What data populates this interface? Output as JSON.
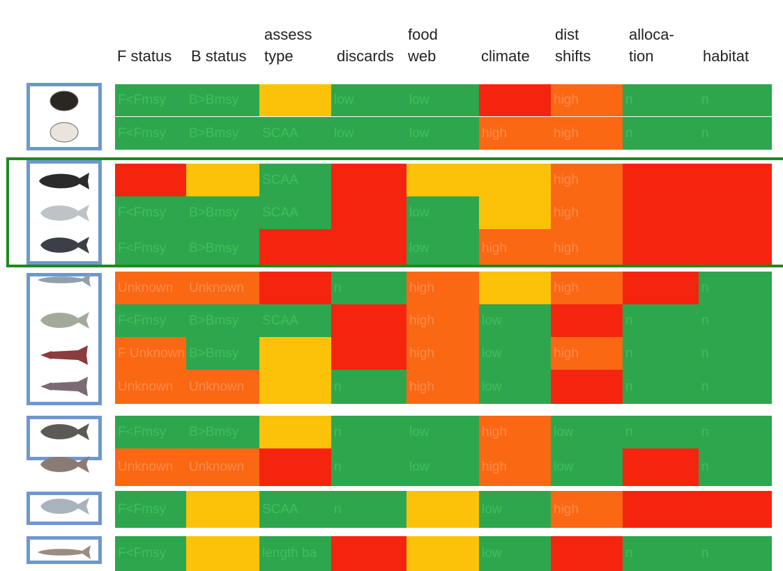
{
  "chart_data": {
    "type": "table",
    "columns": [
      "F status",
      "B status",
      "assess type",
      "discards",
      "food web",
      "climate",
      "dist shifts",
      "allocation",
      "habitat"
    ],
    "column_headers": [
      [
        "",
        "F status"
      ],
      [
        "",
        "B status"
      ],
      [
        "assess",
        "type"
      ],
      [
        "",
        "discards"
      ],
      [
        "food",
        "web"
      ],
      [
        "",
        "climate"
      ],
      [
        "dist",
        "shifts"
      ],
      [
        "alloca-",
        "tion"
      ],
      [
        "",
        "habitat"
      ]
    ],
    "colors": {
      "green": "#2ea64e",
      "yellow": "#fcc20a",
      "orange": "#fa6814",
      "red": "#f5240f"
    },
    "rows": [
      {
        "icon": "ocean-quahog-icon",
        "cells": [
          [
            "green",
            "F<Fmsy"
          ],
          [
            "green",
            "B>Bmsy"
          ],
          [
            "yellow",
            ""
          ],
          [
            "green",
            "low"
          ],
          [
            "green",
            "low"
          ],
          [
            "red",
            ""
          ],
          [
            "orange",
            "high"
          ],
          [
            "green",
            "n"
          ],
          [
            "green",
            "n"
          ]
        ]
      },
      {
        "icon": "surfclam-icon",
        "cells": [
          [
            "green",
            "F<Fmsy"
          ],
          [
            "green",
            "B>Bmsy"
          ],
          [
            "green",
            "SCAA"
          ],
          [
            "green",
            "low"
          ],
          [
            "green",
            "low"
          ],
          [
            "orange",
            "high"
          ],
          [
            "orange",
            "high"
          ],
          [
            "green",
            "n"
          ],
          [
            "green",
            "n"
          ]
        ]
      },
      {
        "icon": "summer-flounder-icon",
        "cells": [
          [
            "red",
            ""
          ],
          [
            "yellow",
            ""
          ],
          [
            "green",
            "SCAA"
          ],
          [
            "red",
            ""
          ],
          [
            "yellow",
            ""
          ],
          [
            "yellow",
            ""
          ],
          [
            "orange",
            "high"
          ],
          [
            "red",
            ""
          ],
          [
            "red",
            ""
          ]
        ]
      },
      {
        "icon": "scup-icon",
        "cells": [
          [
            "green",
            "F<Fmsy"
          ],
          [
            "green",
            "B>Bmsy"
          ],
          [
            "green",
            "SCAA"
          ],
          [
            "red",
            ""
          ],
          [
            "green",
            "low"
          ],
          [
            "yellow",
            ""
          ],
          [
            "orange",
            "high"
          ],
          [
            "red",
            ""
          ],
          [
            "red",
            ""
          ]
        ]
      },
      {
        "icon": "black-sea-bass-icon",
        "cells": [
          [
            "green",
            "F<Fmsy"
          ],
          [
            "green",
            "B>Bmsy"
          ],
          [
            "red",
            ""
          ],
          [
            "red",
            ""
          ],
          [
            "green",
            "low"
          ],
          [
            "orange",
            "high"
          ],
          [
            "orange",
            "high"
          ],
          [
            "red",
            ""
          ],
          [
            "red",
            ""
          ]
        ]
      },
      {
        "icon": "atlantic-mackerel-icon",
        "cells": [
          [
            "orange",
            "Unknown"
          ],
          [
            "orange",
            "Unknown"
          ],
          [
            "red",
            ""
          ],
          [
            "green",
            "n"
          ],
          [
            "orange",
            "high"
          ],
          [
            "yellow",
            ""
          ],
          [
            "orange",
            "high"
          ],
          [
            "red",
            ""
          ],
          [
            "green",
            "n"
          ]
        ]
      },
      {
        "icon": "butterfish-icon",
        "cells": [
          [
            "green",
            "F<Fmsy"
          ],
          [
            "green",
            "B>Bmsy"
          ],
          [
            "green",
            "SCAA"
          ],
          [
            "red",
            ""
          ],
          [
            "orange",
            "high"
          ],
          [
            "green",
            "low"
          ],
          [
            "red",
            ""
          ],
          [
            "green",
            "n"
          ],
          [
            "green",
            "n"
          ]
        ]
      },
      {
        "icon": "longfin-squid-icon",
        "cells": [
          [
            "orange",
            "F Unknown"
          ],
          [
            "green",
            "B>Bmsy"
          ],
          [
            "yellow",
            ""
          ],
          [
            "red",
            ""
          ],
          [
            "orange",
            "high"
          ],
          [
            "green",
            "low"
          ],
          [
            "orange",
            "high"
          ],
          [
            "green",
            "n"
          ],
          [
            "green",
            "n"
          ]
        ]
      },
      {
        "icon": "illex-squid-icon",
        "cells": [
          [
            "orange",
            "Unknown"
          ],
          [
            "orange",
            "Unknown"
          ],
          [
            "yellow",
            ""
          ],
          [
            "green",
            "n"
          ],
          [
            "orange",
            "high"
          ],
          [
            "green",
            "low"
          ],
          [
            "red",
            ""
          ],
          [
            "green",
            "n"
          ],
          [
            "green",
            "n"
          ]
        ]
      },
      {
        "icon": "golden-tilefish-icon",
        "cells": [
          [
            "green",
            "F<Fmsy"
          ],
          [
            "green",
            "B>Bmsy"
          ],
          [
            "yellow",
            ""
          ],
          [
            "green",
            "n"
          ],
          [
            "green",
            "low"
          ],
          [
            "orange",
            "high"
          ],
          [
            "green",
            "low"
          ],
          [
            "green",
            "n"
          ],
          [
            "green",
            "n"
          ]
        ]
      },
      {
        "icon": "blueline-tilefish-icon",
        "cells": [
          [
            "orange",
            "Unknown"
          ],
          [
            "orange",
            "Unknown"
          ],
          [
            "red",
            ""
          ],
          [
            "green",
            "n"
          ],
          [
            "green",
            "low"
          ],
          [
            "orange",
            "high"
          ],
          [
            "green",
            "low"
          ],
          [
            "red",
            ""
          ],
          [
            "green",
            "n"
          ]
        ]
      },
      {
        "icon": "bluefish-icon",
        "cells": [
          [
            "green",
            "F<Fmsy"
          ],
          [
            "yellow",
            ""
          ],
          [
            "green",
            "SCAA"
          ],
          [
            "green",
            "n"
          ],
          [
            "yellow",
            ""
          ],
          [
            "green",
            "low"
          ],
          [
            "orange",
            "high"
          ],
          [
            "red",
            ""
          ],
          [
            "red",
            ""
          ]
        ]
      },
      {
        "icon": "spiny-dogfish-icon",
        "cells": [
          [
            "green",
            "F<Fmsy"
          ],
          [
            "yellow",
            ""
          ],
          [
            "green",
            "length ba"
          ],
          [
            "red",
            ""
          ],
          [
            "yellow",
            ""
          ],
          [
            "green",
            "low"
          ],
          [
            "red",
            ""
          ],
          [
            "green",
            "n"
          ],
          [
            "green",
            "n"
          ]
        ]
      }
    ]
  }
}
